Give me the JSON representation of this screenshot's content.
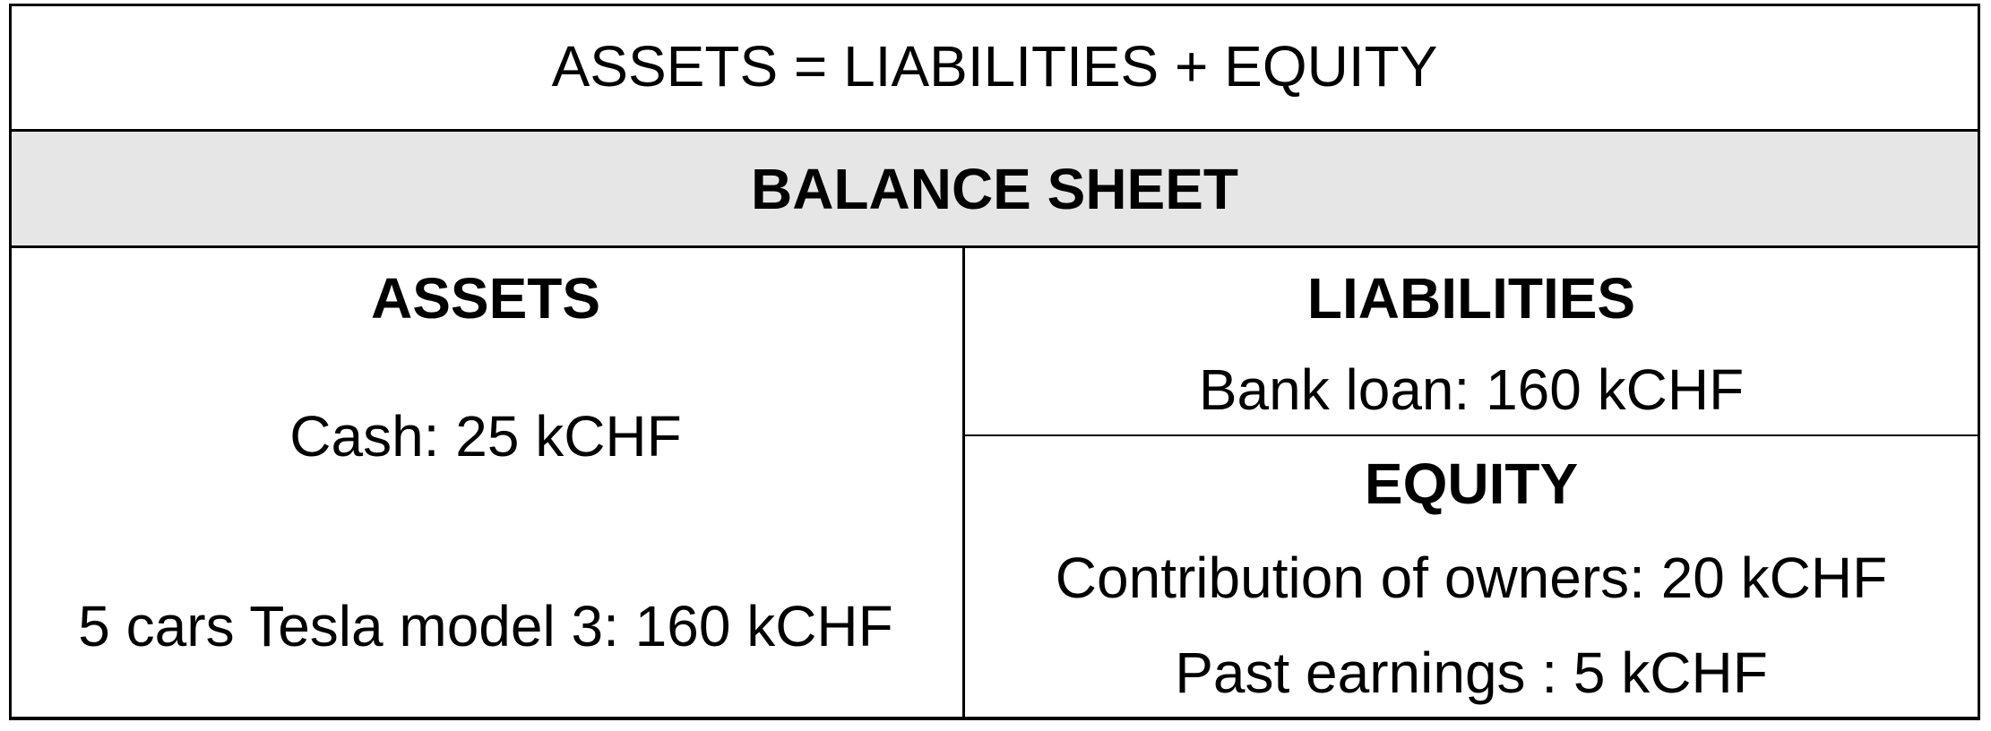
{
  "equation": "ASSETS = LIABILITIES + EQUITY",
  "sheet_title": "BALANCE SHEET",
  "assets": {
    "heading": "ASSETS",
    "items": [
      "Cash: 25 kCHF",
      "5 cars Tesla model 3: 160 kCHF"
    ]
  },
  "liabilities": {
    "heading": "LIABILITIES",
    "items": [
      "Bank loan: 160 kCHF"
    ]
  },
  "equity": {
    "heading": "EQUITY",
    "items": [
      "Contribution of owners: 20 kCHF",
      "Past earnings : 5 kCHF"
    ]
  },
  "colors": {
    "banner_fill": "#e6e6e6",
    "border": "#000000",
    "text": "#000000"
  }
}
